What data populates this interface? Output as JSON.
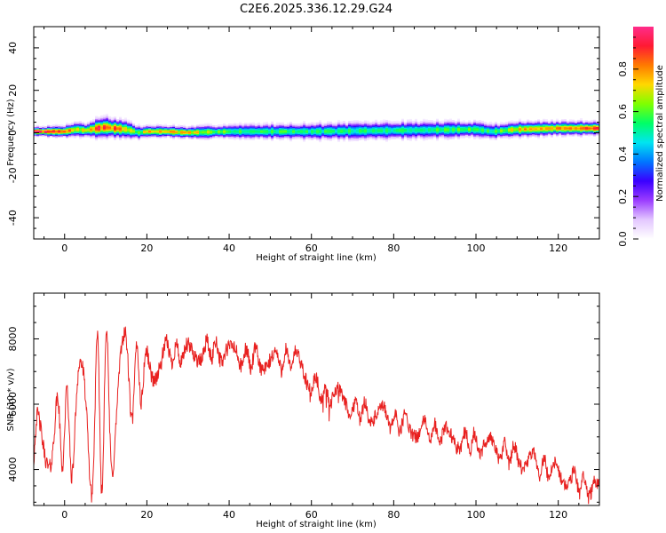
{
  "figure": {
    "title": "C2E6.2025.336.12.29.G24"
  },
  "colors": {
    "spectrum_palette": [
      "#ffffff",
      "#e3c7ff",
      "#9b3dff",
      "#3a00ff",
      "#0077ff",
      "#00e5f0",
      "#00ff66",
      "#7fff00",
      "#ffd800",
      "#ff7a00",
      "#ff1a33",
      "#ff2c8a"
    ],
    "snr_line": "#e8201f",
    "axes": "#000000"
  },
  "chart_data": [
    {
      "type": "heatmap",
      "name": "spectrogram",
      "xlabel": "Height of straight line (km)",
      "ylabel": "Frequency (Hz)",
      "xlim": [
        -7.5,
        130
      ],
      "ylim": [
        -50,
        50
      ],
      "x_ticks": [
        0,
        20,
        40,
        60,
        80,
        100,
        120
      ],
      "y_ticks": [
        -40,
        -20,
        0,
        20,
        40
      ],
      "colorbar": {
        "label": "Normalized spectral amplitude",
        "range": [
          0,
          1
        ],
        "ticks": [
          "0.0",
          "0.2",
          "0.4",
          "0.6",
          "0.8"
        ]
      },
      "ridge": {
        "description_of_values": "center frequency (Hz) of the main spectral ridge vs height (km)",
        "height_km": [
          -7,
          -5,
          0,
          3,
          5,
          8,
          10,
          12,
          15,
          18,
          20,
          25,
          30,
          40,
          60,
          80,
          100,
          104,
          110,
          120,
          130
        ],
        "frequency_hz": [
          0.5,
          0.5,
          0.5,
          1.5,
          1.0,
          2.0,
          2.5,
          2.0,
          1.5,
          0.0,
          0.5,
          0.5,
          0.0,
          0.5,
          0.5,
          1.0,
          1.5,
          0.5,
          1.5,
          2.0,
          2.0
        ],
        "half_width_hz": [
          1.5,
          1.5,
          1.8,
          2.5,
          2.0,
          3.0,
          3.5,
          3.0,
          2.8,
          2.0,
          1.8,
          1.8,
          1.8,
          2.2,
          2.6,
          2.8,
          2.6,
          2.4,
          2.4,
          2.2,
          2.2
        ],
        "peak_amplitude": [
          0.95,
          0.95,
          0.85,
          0.75,
          0.7,
          0.9,
          0.85,
          0.9,
          0.7,
          0.6,
          0.8,
          0.8,
          0.75,
          0.6,
          0.55,
          0.55,
          0.6,
          0.55,
          0.75,
          0.85,
          0.9
        ]
      }
    },
    {
      "type": "line",
      "name": "snr",
      "xlabel": "Height of straight line (km)",
      "ylabel": "SNR (10 * v/v)",
      "xlim": [
        -7.5,
        130
      ],
      "ylim": [
        2900,
        9400
      ],
      "x_ticks": [
        0,
        20,
        40,
        60,
        80,
        100,
        120
      ],
      "y_ticks": [
        4000,
        6000,
        8000
      ],
      "envelope": {
        "description_of_values": "approximate local mean SNR vs height (km); rendered with noise",
        "height_km": [
          -7.5,
          -5,
          0,
          5,
          10,
          13,
          15,
          20,
          25,
          30,
          36,
          40,
          50,
          55,
          58,
          60,
          65,
          70,
          75,
          80,
          90,
          100,
          110,
          120,
          125,
          130
        ],
        "snr": [
          4600,
          5000,
          5200,
          5400,
          5800,
          6400,
          6600,
          7000,
          7600,
          7500,
          7700,
          7500,
          7300,
          7400,
          7200,
          6600,
          6300,
          5900,
          5700,
          5500,
          5100,
          4800,
          4400,
          3900,
          3600,
          3300
        ]
      },
      "oscillation": {
        "description_of_values": "amplitude of large oscillations near low heights (SNR units)",
        "height_km": [
          -7.5,
          0,
          5,
          10,
          13,
          16,
          20,
          25
        ],
        "amplitude": [
          900,
          1100,
          2200,
          2500,
          2000,
          1300,
          600,
          300
        ]
      }
    }
  ]
}
